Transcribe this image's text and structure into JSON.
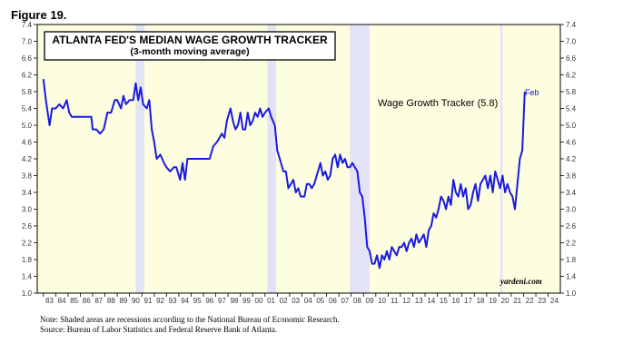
{
  "figure_label": "Figure 19.",
  "notes": {
    "line1": "Note: Shaded areas are recessions according to the National Bureau of Economic Research.",
    "line2": "Source: Bureau of Labor Statistics and Federal Reserve Bank of Atlanta."
  },
  "colors": {
    "background": "#fdfde0",
    "recession": "#e3e3f8",
    "line": "#1a1ae0",
    "end_label": "#1010d0"
  },
  "chart_data": {
    "type": "line",
    "title": "ATLANTA FED'S MEDIAN WAGE GROWTH TRACKER",
    "subtitle": "(3-month moving average)",
    "annotation": "Wage Growth Tracker (5.8)",
    "end_label": "Feb",
    "brand": "yardeni.com",
    "grid": false,
    "xlim": [
      1982.5,
      2024.99
    ],
    "ylim": [
      1.0,
      7.4
    ],
    "y_ticks": [
      "1.0",
      "1.4",
      "1.8",
      "2.2",
      "2.6",
      "3.0",
      "3.4",
      "3.8",
      "4.2",
      "4.6",
      "5.0",
      "5.4",
      "5.8",
      "6.2",
      "6.6",
      "7.0",
      "7.4"
    ],
    "x_tick_labels": [
      "83",
      "84",
      "85",
      "86",
      "87",
      "88",
      "89",
      "90",
      "91",
      "92",
      "93",
      "94",
      "95",
      "96",
      "97",
      "98",
      "99",
      "00",
      "01",
      "02",
      "03",
      "04",
      "05",
      "06",
      "07",
      "08",
      "09",
      "10",
      "11",
      "12",
      "13",
      "14",
      "15",
      "16",
      "17",
      "18",
      "19",
      "20",
      "21",
      "22",
      "23",
      "24"
    ],
    "recessions": [
      [
        1990.5,
        1991.2
      ],
      [
        2001.2,
        2001.9
      ],
      [
        2007.9,
        2009.5
      ],
      [
        2020.1,
        2020.3
      ]
    ],
    "series": [
      {
        "name": "Wage Growth Tracker",
        "points": [
          [
            1983.0,
            6.1
          ],
          [
            1983.2,
            5.6
          ],
          [
            1983.5,
            5.0
          ],
          [
            1983.7,
            5.4
          ],
          [
            1984.0,
            5.4
          ],
          [
            1984.3,
            5.5
          ],
          [
            1984.6,
            5.4
          ],
          [
            1984.9,
            5.6
          ],
          [
            1985.1,
            5.3
          ],
          [
            1985.3,
            5.2
          ],
          [
            1985.6,
            5.2
          ],
          [
            1986.0,
            5.2
          ],
          [
            1986.5,
            5.2
          ],
          [
            1986.9,
            5.2
          ],
          [
            1987.0,
            4.9
          ],
          [
            1987.3,
            4.9
          ],
          [
            1987.6,
            4.8
          ],
          [
            1987.9,
            4.9
          ],
          [
            1988.2,
            5.3
          ],
          [
            1988.5,
            5.3
          ],
          [
            1988.8,
            5.6
          ],
          [
            1989.0,
            5.6
          ],
          [
            1989.3,
            5.4
          ],
          [
            1989.5,
            5.7
          ],
          [
            1989.7,
            5.5
          ],
          [
            1990.0,
            5.6
          ],
          [
            1990.3,
            5.6
          ],
          [
            1990.5,
            6.0
          ],
          [
            1990.7,
            5.6
          ],
          [
            1990.9,
            5.9
          ],
          [
            1991.1,
            5.5
          ],
          [
            1991.4,
            5.4
          ],
          [
            1991.6,
            5.6
          ],
          [
            1991.8,
            4.9
          ],
          [
            1992.0,
            4.6
          ],
          [
            1992.2,
            4.2
          ],
          [
            1992.5,
            4.3
          ],
          [
            1992.8,
            4.1
          ],
          [
            1993.0,
            4.0
          ],
          [
            1993.3,
            3.9
          ],
          [
            1993.6,
            4.0
          ],
          [
            1993.8,
            4.0
          ],
          [
            1994.1,
            3.7
          ],
          [
            1994.3,
            4.1
          ],
          [
            1994.5,
            3.7
          ],
          [
            1994.7,
            4.2
          ],
          [
            1995.0,
            4.2
          ],
          [
            1995.5,
            4.2
          ],
          [
            1996.0,
            4.2
          ],
          [
            1996.5,
            4.2
          ],
          [
            1996.8,
            4.5
          ],
          [
            1997.1,
            4.6
          ],
          [
            1997.3,
            4.7
          ],
          [
            1997.5,
            4.8
          ],
          [
            1997.7,
            4.7
          ],
          [
            1997.9,
            5.1
          ],
          [
            1998.2,
            5.4
          ],
          [
            1998.4,
            5.1
          ],
          [
            1998.6,
            4.9
          ],
          [
            1998.8,
            5.0
          ],
          [
            1999.0,
            5.3
          ],
          [
            1999.2,
            4.9
          ],
          [
            1999.4,
            4.9
          ],
          [
            1999.6,
            5.3
          ],
          [
            1999.8,
            5.0
          ],
          [
            2000.0,
            5.1
          ],
          [
            2000.2,
            5.3
          ],
          [
            2000.4,
            5.2
          ],
          [
            2000.6,
            5.4
          ],
          [
            2000.8,
            5.2
          ],
          [
            2001.0,
            5.3
          ],
          [
            2001.3,
            5.4
          ],
          [
            2001.5,
            5.2
          ],
          [
            2001.8,
            5.0
          ],
          [
            2002.0,
            4.4
          ],
          [
            2002.3,
            4.1
          ],
          [
            2002.5,
            3.9
          ],
          [
            2002.7,
            3.9
          ],
          [
            2002.9,
            3.5
          ],
          [
            2003.1,
            3.6
          ],
          [
            2003.3,
            3.7
          ],
          [
            2003.5,
            3.4
          ],
          [
            2003.7,
            3.5
          ],
          [
            2003.9,
            3.3
          ],
          [
            2004.2,
            3.3
          ],
          [
            2004.4,
            3.6
          ],
          [
            2004.6,
            3.6
          ],
          [
            2004.8,
            3.5
          ],
          [
            2005.0,
            3.6
          ],
          [
            2005.3,
            3.9
          ],
          [
            2005.5,
            4.1
          ],
          [
            2005.7,
            3.8
          ],
          [
            2005.9,
            3.9
          ],
          [
            2006.1,
            3.7
          ],
          [
            2006.3,
            3.8
          ],
          [
            2006.5,
            4.2
          ],
          [
            2006.7,
            4.3
          ],
          [
            2006.9,
            4.0
          ],
          [
            2007.1,
            4.3
          ],
          [
            2007.3,
            4.1
          ],
          [
            2007.5,
            4.2
          ],
          [
            2007.7,
            4.0
          ],
          [
            2007.9,
            4.0
          ],
          [
            2008.1,
            4.1
          ],
          [
            2008.3,
            4.0
          ],
          [
            2008.5,
            3.9
          ],
          [
            2008.7,
            3.4
          ],
          [
            2008.9,
            3.3
          ],
          [
            2009.1,
            2.8
          ],
          [
            2009.3,
            2.1
          ],
          [
            2009.5,
            2.0
          ],
          [
            2009.7,
            1.7
          ],
          [
            2009.9,
            1.7
          ],
          [
            2010.1,
            1.9
          ],
          [
            2010.3,
            1.6
          ],
          [
            2010.5,
            1.9
          ],
          [
            2010.7,
            1.8
          ],
          [
            2010.9,
            2.0
          ],
          [
            2011.1,
            1.8
          ],
          [
            2011.3,
            2.1
          ],
          [
            2011.5,
            2.0
          ],
          [
            2011.7,
            1.9
          ],
          [
            2011.9,
            2.1
          ],
          [
            2012.1,
            2.1
          ],
          [
            2012.3,
            2.2
          ],
          [
            2012.5,
            2.0
          ],
          [
            2012.7,
            2.2
          ],
          [
            2012.9,
            2.3
          ],
          [
            2013.1,
            2.1
          ],
          [
            2013.3,
            2.4
          ],
          [
            2013.5,
            2.2
          ],
          [
            2013.7,
            2.3
          ],
          [
            2013.9,
            2.4
          ],
          [
            2014.1,
            2.1
          ],
          [
            2014.3,
            2.5
          ],
          [
            2014.5,
            2.6
          ],
          [
            2014.7,
            2.9
          ],
          [
            2014.9,
            2.8
          ],
          [
            2015.1,
            3.0
          ],
          [
            2015.3,
            3.3
          ],
          [
            2015.5,
            3.2
          ],
          [
            2015.7,
            3.0
          ],
          [
            2015.9,
            3.3
          ],
          [
            2016.1,
            3.1
          ],
          [
            2016.3,
            3.7
          ],
          [
            2016.5,
            3.4
          ],
          [
            2016.7,
            3.3
          ],
          [
            2016.9,
            3.6
          ],
          [
            2017.1,
            3.3
          ],
          [
            2017.3,
            3.5
          ],
          [
            2017.5,
            3.0
          ],
          [
            2017.7,
            3.1
          ],
          [
            2017.9,
            3.4
          ],
          [
            2018.1,
            3.6
          ],
          [
            2018.3,
            3.2
          ],
          [
            2018.5,
            3.6
          ],
          [
            2018.7,
            3.7
          ],
          [
            2018.9,
            3.8
          ],
          [
            2019.1,
            3.5
          ],
          [
            2019.3,
            3.8
          ],
          [
            2019.5,
            3.4
          ],
          [
            2019.7,
            3.9
          ],
          [
            2019.9,
            3.7
          ],
          [
            2020.1,
            3.5
          ],
          [
            2020.3,
            3.8
          ],
          [
            2020.5,
            3.4
          ],
          [
            2020.7,
            3.6
          ],
          [
            2020.9,
            3.4
          ],
          [
            2021.1,
            3.3
          ],
          [
            2021.3,
            3.0
          ],
          [
            2021.5,
            3.6
          ],
          [
            2021.7,
            4.2
          ],
          [
            2021.9,
            4.4
          ],
          [
            2022.1,
            5.8
          ]
        ]
      }
    ]
  }
}
